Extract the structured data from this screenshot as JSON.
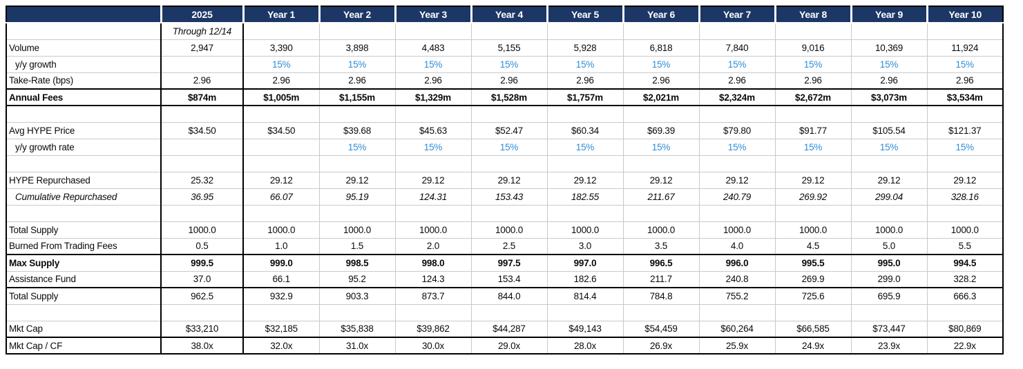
{
  "colors": {
    "header_bg": "#1c3765",
    "header_text": "#ffffff",
    "growth_blue": "#2d8cd7",
    "grid": "#c9c9c9",
    "line": "#000000"
  },
  "table": {
    "corner_label": "",
    "columns": [
      "2025",
      "Year 1",
      "Year 2",
      "Year 3",
      "Year 4",
      "Year 5",
      "Year 6",
      "Year 7",
      "Year 8",
      "Year 9",
      "Year 10"
    ],
    "rows": [
      {
        "label": "",
        "style": "italic",
        "values": [
          "Through 12/14",
          "",
          "",
          "",
          "",
          "",
          "",
          "",
          "",
          "",
          ""
        ]
      },
      {
        "label": "Volume",
        "style": "",
        "values": [
          "2,947",
          "3,390",
          "3,898",
          "4,483",
          "5,155",
          "5,928",
          "6,818",
          "7,840",
          "9,016",
          "10,369",
          "11,924"
        ]
      },
      {
        "label": "y/y growth",
        "style": "indent blue-values",
        "values": [
          "",
          "15%",
          "15%",
          "15%",
          "15%",
          "15%",
          "15%",
          "15%",
          "15%",
          "15%",
          "15%"
        ]
      },
      {
        "label": "Take-Rate (bps)",
        "style": "",
        "values": [
          "2.96",
          "2.96",
          "2.96",
          "2.96",
          "2.96",
          "2.96",
          "2.96",
          "2.96",
          "2.96",
          "2.96",
          "2.96"
        ]
      },
      {
        "label": "Annual Fees",
        "style": "bold rule-top rule-bottom",
        "values": [
          "$874m",
          "$1,005m",
          "$1,155m",
          "$1,329m",
          "$1,528m",
          "$1,757m",
          "$2,021m",
          "$2,324m",
          "$2,672m",
          "$3,073m",
          "$3,534m"
        ]
      },
      {
        "label": "",
        "style": "",
        "values": [
          "",
          "",
          "",
          "",
          "",
          "",
          "",
          "",
          "",
          "",
          ""
        ]
      },
      {
        "label": "Avg HYPE Price",
        "style": "",
        "values": [
          "$34.50",
          "$34.50",
          "$39.68",
          "$45.63",
          "$52.47",
          "$60.34",
          "$69.39",
          "$79.80",
          "$91.77",
          "$105.54",
          "$121.37"
        ]
      },
      {
        "label": "y/y growth rate",
        "style": "indent blue-values",
        "values": [
          "",
          "",
          "15%",
          "15%",
          "15%",
          "15%",
          "15%",
          "15%",
          "15%",
          "15%",
          "15%"
        ]
      },
      {
        "label": "",
        "style": "",
        "values": [
          "",
          "",
          "",
          "",
          "",
          "",
          "",
          "",
          "",
          "",
          ""
        ]
      },
      {
        "label": "HYPE Repurchased",
        "style": "",
        "values": [
          "25.32",
          "29.12",
          "29.12",
          "29.12",
          "29.12",
          "29.12",
          "29.12",
          "29.12",
          "29.12",
          "29.12",
          "29.12"
        ]
      },
      {
        "label": "Cumulative Repurchased",
        "style": "indent italic",
        "values": [
          "36.95",
          "66.07",
          "95.19",
          "124.31",
          "153.43",
          "182.55",
          "211.67",
          "240.79",
          "269.92",
          "299.04",
          "328.16"
        ]
      },
      {
        "label": "",
        "style": "",
        "values": [
          "",
          "",
          "",
          "",
          "",
          "",
          "",
          "",
          "",
          "",
          ""
        ]
      },
      {
        "label": "Total Supply",
        "style": "",
        "values": [
          "1000.0",
          "1000.0",
          "1000.0",
          "1000.0",
          "1000.0",
          "1000.0",
          "1000.0",
          "1000.0",
          "1000.0",
          "1000.0",
          "1000.0"
        ]
      },
      {
        "label": "Burned From Trading Fees",
        "style": "",
        "values": [
          "0.5",
          "1.0",
          "1.5",
          "2.0",
          "2.5",
          "3.0",
          "3.5",
          "4.0",
          "4.5",
          "5.0",
          "5.5"
        ]
      },
      {
        "label": "Max Supply",
        "style": "bold rule-top",
        "values": [
          "999.5",
          "999.0",
          "998.5",
          "998.0",
          "997.5",
          "997.0",
          "996.5",
          "996.0",
          "995.5",
          "995.0",
          "994.5"
        ]
      },
      {
        "label": "Assistance Fund",
        "style": "",
        "values": [
          "37.0",
          "66.1",
          "95.2",
          "124.3",
          "153.4",
          "182.6",
          "211.7",
          "240.8",
          "269.9",
          "299.0",
          "328.2"
        ]
      },
      {
        "label": "Total Supply",
        "style": "rule-top",
        "values": [
          "962.5",
          "932.9",
          "903.3",
          "873.7",
          "844.0",
          "814.4",
          "784.8",
          "755.2",
          "725.6",
          "695.9",
          "666.3"
        ]
      },
      {
        "label": "",
        "style": "",
        "values": [
          "",
          "",
          "",
          "",
          "",
          "",
          "",
          "",
          "",
          "",
          ""
        ]
      },
      {
        "label": "Mkt Cap",
        "style": "",
        "values": [
          "$33,210",
          "$32,185",
          "$35,838",
          "$39,862",
          "$44,287",
          "$49,143",
          "$54,459",
          "$60,264",
          "$66,585",
          "$73,447",
          "$80,869"
        ]
      },
      {
        "label": "Mkt Cap / CF",
        "style": "rule-top",
        "values": [
          "38.0x",
          "32.0x",
          "31.0x",
          "30.0x",
          "29.0x",
          "28.0x",
          "26.9x",
          "25.9x",
          "24.9x",
          "23.9x",
          "22.9x"
        ]
      }
    ]
  }
}
